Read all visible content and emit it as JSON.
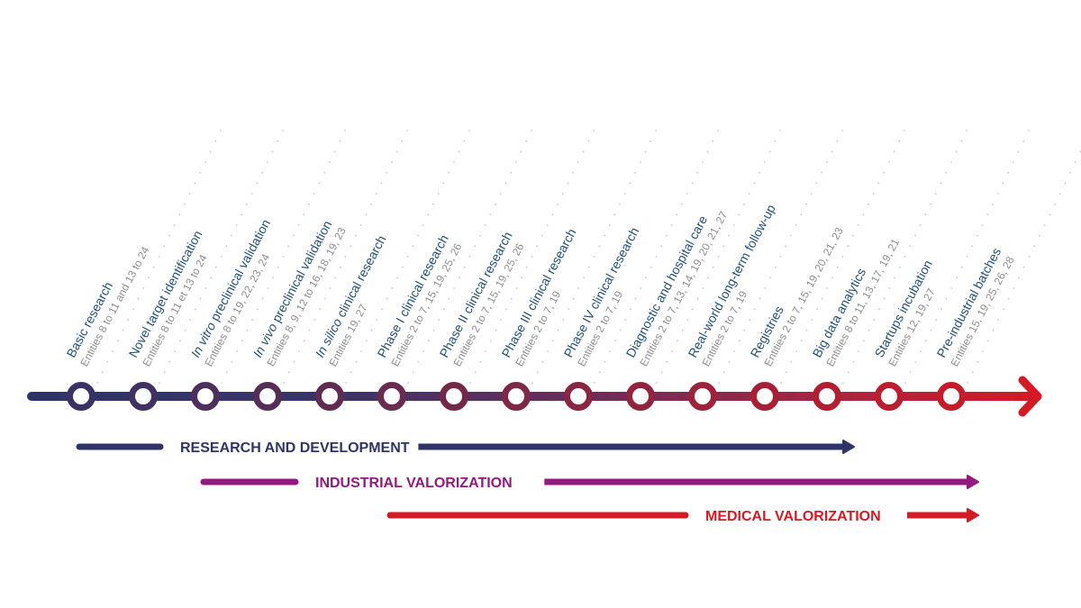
{
  "diagram": {
    "type": "timeline",
    "colors": {
      "start": "#2e3468",
      "end": "#d41a24",
      "title_text": "#1f4e7a",
      "entities_text": "#8c8c8c",
      "guide_dots": "#c8c8c8",
      "research_band": "#2e3468",
      "industrial_band": "#93197f",
      "medical_band": "#d41a24"
    },
    "steps": [
      {
        "title_italic": "",
        "title": "Basic research",
        "entities": "Entities 8 to 11 and 13 to 24"
      },
      {
        "title_italic": "",
        "title": "Novel target identification",
        "entities": "Entities 8 to 11 et 13 to 24"
      },
      {
        "title_italic": "In vitro",
        "title": " preclinical validation",
        "entities": "Entities 8 to 19, 22, 23, 24"
      },
      {
        "title_italic": "In vivo",
        "title": " preclinical validation",
        "entities": "Entities 8, 9, 12 to 16, 18, 19, 23"
      },
      {
        "title_italic": "In silico",
        "title": " clinical research",
        "entities": "Entities 19, 27"
      },
      {
        "title_italic": "",
        "title": "Phase I clinical research",
        "entities": "Entities 2 to 7, 15, 19, 25, 26"
      },
      {
        "title_italic": "",
        "title": "Phase II clinical research",
        "entities": "Entities 2 to 7, 15, 19, 25, 26"
      },
      {
        "title_italic": "",
        "title": "Phase III clinical research",
        "entities": "Entities 2 to 7, 19"
      },
      {
        "title_italic": "",
        "title": "Phase IV clinical research",
        "entities": "Entities 2 to 7, 19"
      },
      {
        "title_italic": "",
        "title": "Diagnostic and hospital care",
        "entities": "Entities 2 to 7, 13, 14, 19, 20, 21, 27"
      },
      {
        "title_italic": "",
        "title": "Real-world long-term follow-up",
        "entities": "Entities 2 to 7, 19"
      },
      {
        "title_italic": "",
        "title": "Registries",
        "entities": "Entities 2 to 7, 15, 19, 20, 21, 23"
      },
      {
        "title_italic": "",
        "title": "Big data analytics",
        "entities": "Entities 8 to 11, 13, 17, 19, 21"
      },
      {
        "title_italic": "",
        "title": "Startups incubation",
        "entities": "Entities 12, 19, 27"
      },
      {
        "title_italic": "",
        "title": "Pre-industrial batches",
        "entities": "Entities 15, 19, 25, 26, 28"
      }
    ],
    "bands": [
      {
        "label": "RESEARCH AND DEVELOPMENT",
        "from_step": 1,
        "to_step": 13,
        "color_key": "research_band"
      },
      {
        "label": "INDUSTRIAL VALORIZATION",
        "from_step": 3,
        "to_step": 15,
        "color_key": "industrial_band"
      },
      {
        "label": "MEDICAL VALORIZATION",
        "from_step": 6,
        "to_step": 15,
        "color_key": "medical_band"
      }
    ]
  }
}
